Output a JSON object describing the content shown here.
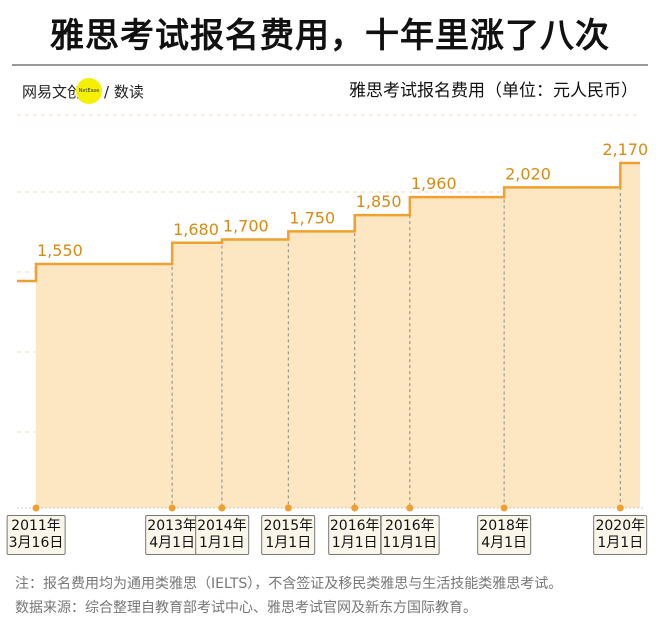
{
  "header": {
    "title": "雅思考试报名费用，十年里涨了八次",
    "logo_text": "网易文创",
    "logo_badge": "NetEase",
    "logo_suffix": "/ 数读",
    "subtitle": "雅思考试报名费用（单位：元人民币）"
  },
  "colors": {
    "line": "#f0a030",
    "fill": "#fde6c2",
    "label": "#d98a14",
    "grid": "#f0dcc0"
  },
  "chart_data": {
    "type": "area",
    "step": true,
    "title": "雅思考试报名费用（单位：元人民币）",
    "x": [
      "2011年3月16日",
      "2013年4月1日",
      "2014年1月1日",
      "2015年1月1日",
      "2016年1月1日",
      "2016年11月1日",
      "2018年4月1日",
      "2020年1月1日"
    ],
    "x_labels": [
      [
        "2011年",
        "3月16日"
      ],
      [
        "2013年",
        "4月1日"
      ],
      [
        "2014年",
        "1月1日"
      ],
      [
        "2015年",
        "1月1日"
      ],
      [
        "2016年",
        "1月1日"
      ],
      [
        "2016年",
        "11月1日"
      ],
      [
        "2018年",
        "4月1日"
      ],
      [
        "2020年",
        "1月1日"
      ]
    ],
    "x_years": [
      2011.2,
      2013.25,
      2014.0,
      2015.0,
      2016.0,
      2016.83,
      2018.25,
      2020.0
    ],
    "values": [
      1550,
      1680,
      1700,
      1750,
      1850,
      1960,
      2020,
      2170
    ],
    "data_labels": [
      "1,550",
      "1,680",
      "1,700",
      "1,750",
      "1,850",
      "1,960",
      "2,020",
      "2,170"
    ],
    "grid": true,
    "legend": "none"
  },
  "notes": [
    "注：报名费用均为通用类雅思（IELTS），不含签证及移民类雅思与生活技能类雅思考试。",
    "数据来源：综合整理自教育部考试中心、雅思考试官网及新东方国际教育。"
  ]
}
